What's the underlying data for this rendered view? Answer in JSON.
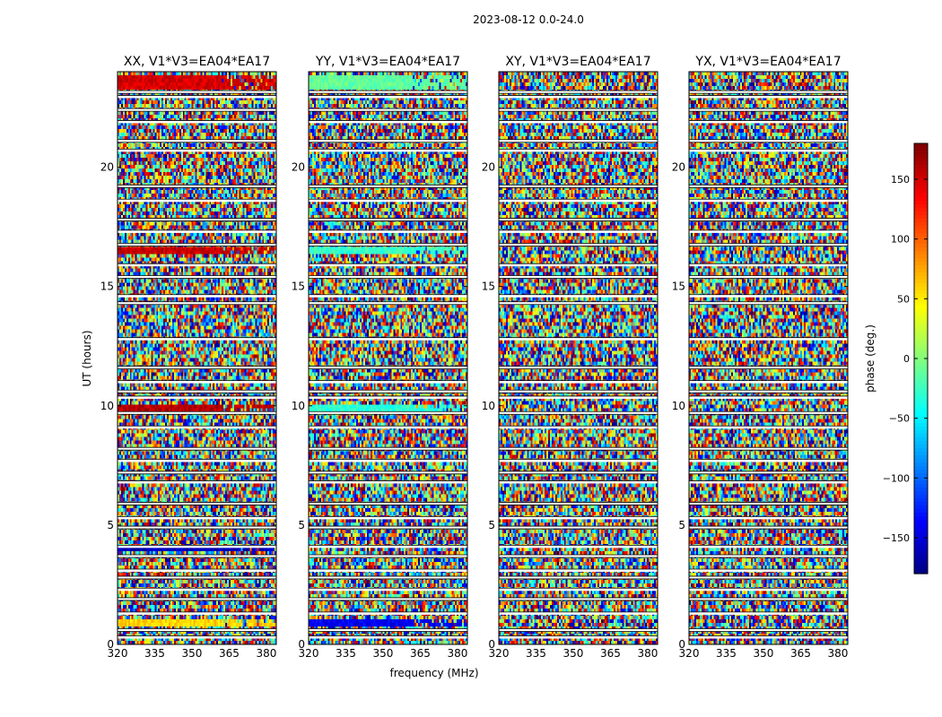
{
  "figure": {
    "suptitle": "2023-08-12 0.0-24.0"
  },
  "chart_data": {
    "type": "heatmap",
    "panels": [
      {
        "title": "XX, V1*V3=EA04*EA17",
        "pol": "XX"
      },
      {
        "title": "YY, V1*V3=EA04*EA17",
        "pol": "YY"
      },
      {
        "title": "XY, V1*V3=EA04*EA17",
        "pol": "XY"
      },
      {
        "title": "YX, V1*V3=EA04*EA17",
        "pol": "YX"
      }
    ],
    "xlabel": "frequency (MHz)",
    "ylabel": "UT (hours)",
    "xlim": [
      320,
      384
    ],
    "ylim": [
      0,
      24
    ],
    "xticks": [
      320,
      335,
      350,
      365,
      380
    ],
    "yticks": [
      0,
      5,
      10,
      15,
      20
    ],
    "colorbar": {
      "label": "phase (deg.)",
      "range": [
        -180,
        180
      ],
      "ticks": [
        150,
        100,
        50,
        0,
        -50,
        -100,
        -150
      ],
      "tick_labels": [
        "150",
        "100",
        "50",
        "0",
        "−50",
        "−100",
        "−150"
      ],
      "colormap": "jet"
    },
    "coherent_bands": [
      {
        "pol": "XX",
        "t0": 23.2,
        "t1": 23.9,
        "phase": 150
      },
      {
        "pol": "XX",
        "t0": 16.3,
        "t1": 16.6,
        "phase": 155
      },
      {
        "pol": "XX",
        "t0": 9.8,
        "t1": 10.1,
        "phase": 160
      },
      {
        "pol": "XX",
        "t0": 3.85,
        "t1": 4.0,
        "phase": -160
      },
      {
        "pol": "XX",
        "t0": 0.8,
        "t1": 1.1,
        "phase": 60
      },
      {
        "pol": "YY",
        "t0": 23.2,
        "t1": 23.9,
        "phase": -10
      },
      {
        "pol": "YY",
        "t0": 16.3,
        "t1": 16.6,
        "phase": -25
      },
      {
        "pol": "YY",
        "t0": 9.8,
        "t1": 10.1,
        "phase": -30
      },
      {
        "pol": "YY",
        "t0": 0.8,
        "t1": 1.1,
        "phase": -140
      }
    ],
    "flagged_rows_hours": [
      23.15,
      22.95,
      22.4,
      21.9,
      21.1,
      20.7,
      19.2,
      18.6,
      17.8,
      17.3,
      16.75,
      15.9,
      15.4,
      14.6,
      14.3,
      12.8,
      11.6,
      11.0,
      10.6,
      10.35,
      9.7,
      9.1,
      8.2,
      7.7,
      7.2,
      6.8,
      5.9,
      5.3,
      4.9,
      4.1,
      3.7,
      3.1,
      2.8,
      2.3,
      1.9,
      1.3,
      0.6,
      0.3
    ]
  }
}
